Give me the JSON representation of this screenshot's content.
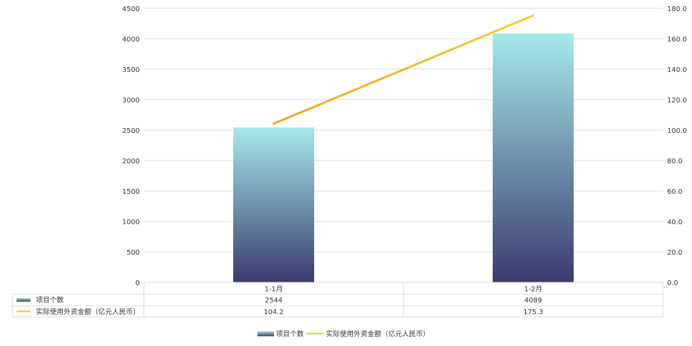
{
  "chart_data": {
    "type": "bar",
    "categories": [
      "1-1月",
      "1-2月"
    ],
    "series": [
      {
        "name": "项目个数",
        "type": "bar",
        "axis": "left",
        "values": [
          2544,
          4089
        ]
      },
      {
        "name": "实际使用外资金额（亿元人民币）",
        "type": "line",
        "axis": "right",
        "values": [
          104.2,
          175.3
        ]
      }
    ],
    "y_left": {
      "min": 0,
      "max": 4500,
      "ticks": [
        "0",
        "500",
        "1000",
        "1500",
        "2000",
        "2500",
        "3000",
        "3500",
        "4000",
        "4500"
      ]
    },
    "y_right": {
      "min": 0,
      "max": 180,
      "ticks": [
        "0.0",
        "20.0",
        "40.0",
        "60.0",
        "80.0",
        "100.0",
        "120.0",
        "140.0",
        "160.0",
        "180.0"
      ]
    },
    "grid": true,
    "data_table": true,
    "table_values": [
      [
        "2544",
        "4089"
      ],
      [
        "104.2",
        "175.3"
      ]
    ],
    "legend_position": "bottom"
  },
  "colors": {
    "bar_top": "#a6eaeb",
    "bar_bottom": "#3a3a6e",
    "line": "#f0d030",
    "line_start": "#f0a020",
    "grid": "#d9d9d9"
  }
}
